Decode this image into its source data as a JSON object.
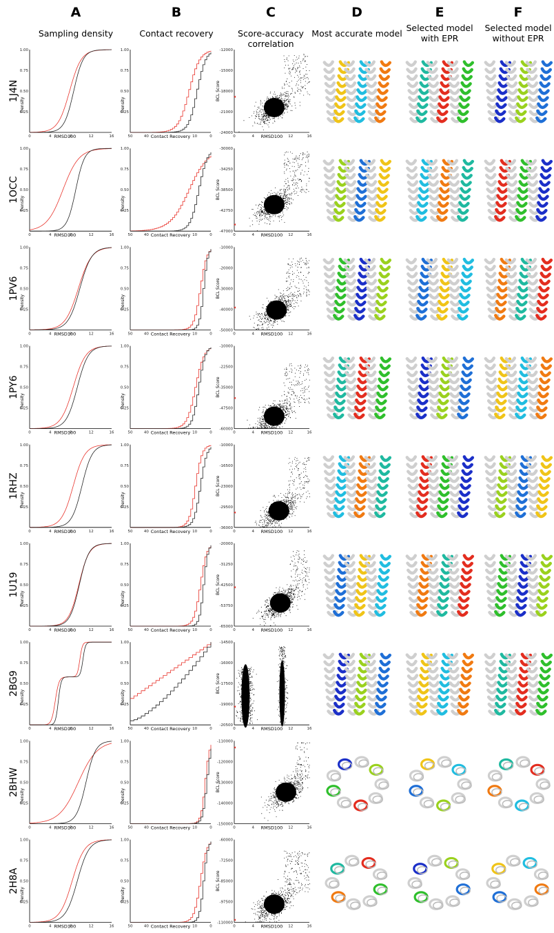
{
  "columns": [
    {
      "letter": "A",
      "subtitle": [
        "Sampling density"
      ]
    },
    {
      "letter": "B",
      "subtitle": [
        "Contact recovery"
      ]
    },
    {
      "letter": "C",
      "subtitle": [
        "Score-accuracy",
        "correlation"
      ]
    },
    {
      "letter": "D",
      "subtitle": [
        "Most accurate model"
      ]
    },
    {
      "letter": "E",
      "subtitle": [
        "Selected model",
        "with EPR"
      ]
    },
    {
      "letter": "F",
      "subtitle": [
        "Selected model",
        "without EPR"
      ]
    }
  ],
  "rows": [
    "1J4N",
    "1OCC",
    "1PV6",
    "1PY6",
    "1RHZ",
    "1U19",
    "2BG9",
    "2BHW",
    "2H8A"
  ],
  "colors": {
    "series_red": "#e8322a",
    "series_black": "#222222"
  },
  "chart_data": [
    {
      "type": "line",
      "panel": "Sampling density",
      "xlabel": "RMSD100",
      "ylabel": "Density",
      "x_ticks": [
        "0",
        "4",
        "8",
        "12",
        "16"
      ],
      "y_ticks": [
        "0.25",
        "0.50",
        "0.75",
        "1.00"
      ],
      "xlim": [
        0,
        16
      ],
      "ylim": [
        0,
        1
      ],
      "grid": false
    },
    {
      "type": "line",
      "panel": "Contact recovery",
      "xlabel": "Contact Recovery",
      "ylabel": "Density",
      "x_ticks": [
        "50",
        "40",
        "30",
        "20",
        "10",
        "0"
      ],
      "y_ticks": [
        "0.25",
        "0.50",
        "0.75",
        "1.00"
      ],
      "xlim": [
        50,
        0
      ],
      "ylim": [
        0,
        1
      ],
      "grid": false
    },
    {
      "type": "scatter",
      "panel": "Score-accuracy correlation",
      "xlabel": "RMSD100",
      "ylabel": "BCL Score",
      "x_ticks": [
        "0",
        "4",
        "8",
        "12",
        "16"
      ],
      "xlim": [
        0,
        16
      ],
      "grid": false,
      "y_ticks_by_row": {
        "1J4N": [
          "-12000",
          "-15000",
          "-18000",
          "-21000",
          "-24000"
        ],
        "1OCC": [
          "-30000",
          "-34250",
          "-38500",
          "-42750",
          "-47000"
        ],
        "1PV6": [
          "-10000",
          "-20000",
          "-30000",
          "-40000",
          "-50000"
        ],
        "1PY6": [
          "-10000",
          "-22500",
          "-35000",
          "-47500",
          "-60000"
        ],
        "1RHZ": [
          "-10000",
          "-16500",
          "-23000",
          "-29500",
          "-36000"
        ],
        "1U19": [
          "-20000",
          "-31250",
          "-42500",
          "-53750",
          "-65000"
        ],
        "2BG9": [
          "-14500",
          "-16000",
          "-17500",
          "-19000",
          "-20500"
        ],
        "2BHW": [
          "-110000",
          "-120000",
          "-130000",
          "-140000",
          "-150000"
        ],
        "2H8A": [
          "-60000",
          "-72500",
          "-85000",
          "-97500",
          "-110000"
        ]
      }
    }
  ],
  "helix_palette": [
    "#e32d1f",
    "#f07a12",
    "#f0c418",
    "#9ad11e",
    "#2fbf2c",
    "#1fb9a0",
    "#21bde0",
    "#1f6fd6",
    "#1b2fc8",
    "#cfcfcf"
  ]
}
